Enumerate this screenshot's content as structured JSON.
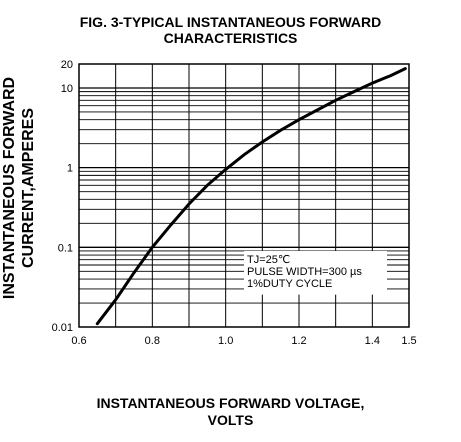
{
  "chart_data": {
    "type": "line",
    "title": [
      "FIG. 3-TYPICAL INSTANTANEOUS FORWARD",
      "CHARACTERISTICS"
    ],
    "xlabel": [
      "INSTANTANEOUS FORWARD VOLTAGE,",
      "VOLTS"
    ],
    "ylabel": [
      "INSTANTANEOUS FORWARD",
      "CURRENT,AMPERES"
    ],
    "xlim": [
      0.6,
      1.5
    ],
    "ylim": [
      0.01,
      20
    ],
    "yscale": "log",
    "grid": true,
    "x_ticks": [
      0.6,
      0.8,
      1.0,
      1.2,
      1.4,
      1.5
    ],
    "x_tick_labels": [
      "0.6",
      "0.8",
      "1.0",
      "1.2",
      "1.4",
      "1.5"
    ],
    "y_ticks": [
      0.01,
      0.1,
      1,
      10,
      20
    ],
    "y_tick_labels": [
      "0.01",
      "0.1",
      "1",
      "10",
      "20"
    ],
    "annotation": [
      "TJ=25℃",
      "PULSE WIDTH=300 µs",
      "1%DUTY CYCLE"
    ],
    "series": [
      {
        "x": [
          0.65,
          0.7,
          0.75,
          0.8,
          0.85,
          0.9,
          0.95,
          1.0,
          1.05,
          1.1,
          1.15,
          1.2,
          1.25,
          1.3,
          1.35,
          1.4,
          1.45,
          1.49
        ],
        "y": [
          0.011,
          0.022,
          0.048,
          0.1,
          0.19,
          0.35,
          0.6,
          0.95,
          1.45,
          2.1,
          2.95,
          4.0,
          5.3,
          7.0,
          9.0,
          11.5,
          14.3,
          17.5
        ]
      }
    ]
  }
}
